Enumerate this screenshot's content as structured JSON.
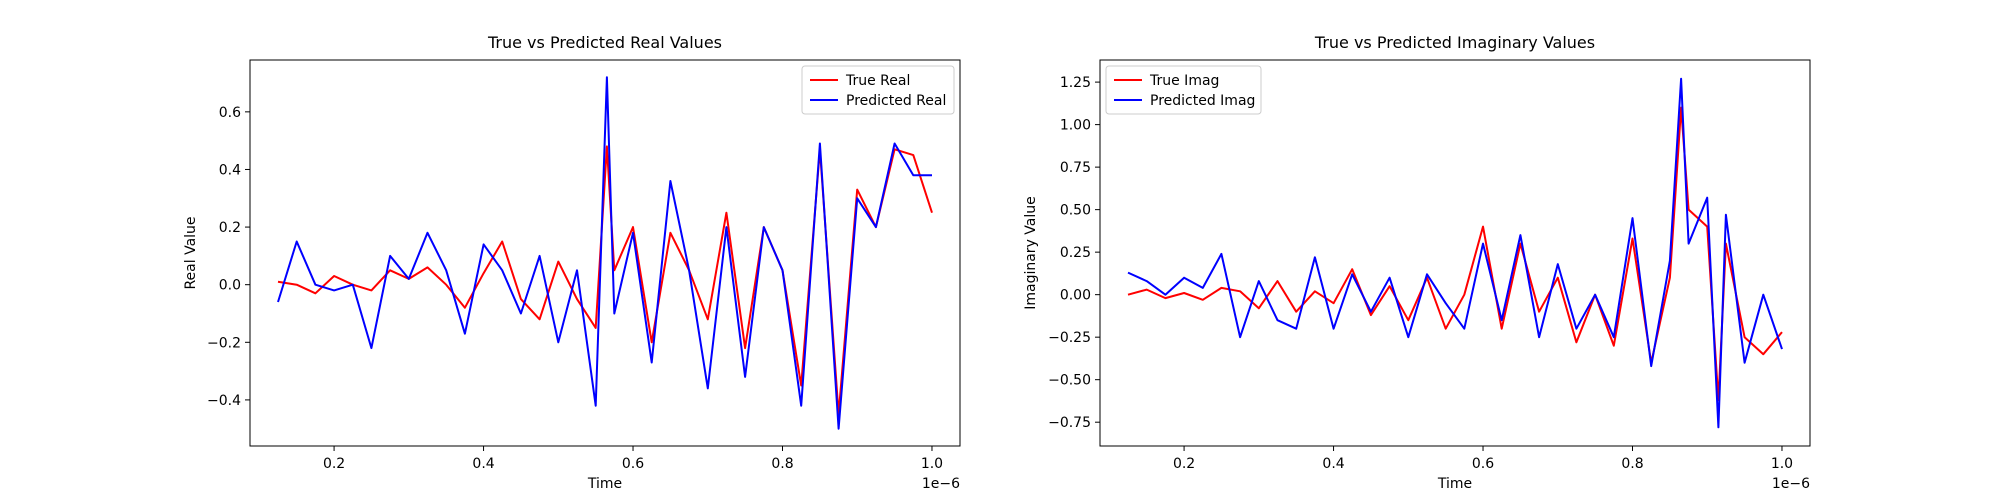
{
  "chart_data": [
    {
      "type": "line",
      "title": "True vs Predicted Real Values",
      "xlabel": "Time",
      "ylabel": "Real Value",
      "x_offset_text": "1e−6",
      "xlim": [
        0.0875,
        1.0375
      ],
      "ylim": [
        -0.56,
        0.78
      ],
      "xticks": [
        0.2,
        0.4,
        0.6,
        0.8,
        1.0
      ],
      "xtick_labels": [
        "0.2",
        "0.4",
        "0.6",
        "0.8",
        "1.0"
      ],
      "yticks": [
        -0.4,
        -0.2,
        0.0,
        0.2,
        0.4,
        0.6
      ],
      "ytick_labels": [
        "−0.4",
        "−0.2",
        "0.0",
        "0.2",
        "0.4",
        "0.6"
      ],
      "legend": "top-right",
      "grid": false,
      "x": [
        0.125,
        0.15,
        0.175,
        0.2,
        0.225,
        0.25,
        0.275,
        0.3,
        0.325,
        0.35,
        0.375,
        0.4,
        0.425,
        0.45,
        0.475,
        0.5,
        0.525,
        0.55,
        0.565,
        0.575,
        0.6,
        0.625,
        0.65,
        0.675,
        0.7,
        0.725,
        0.75,
        0.775,
        0.8,
        0.825,
        0.85,
        0.875,
        0.9,
        0.925,
        0.95,
        0.975,
        1.0
      ],
      "series": [
        {
          "name": "True Real",
          "color": "#ff0000",
          "values": [
            0.01,
            0.0,
            -0.03,
            0.03,
            0.0,
            -0.02,
            0.05,
            0.02,
            0.06,
            0.0,
            -0.08,
            0.04,
            0.15,
            -0.05,
            -0.12,
            0.08,
            -0.05,
            -0.15,
            0.48,
            0.05,
            0.2,
            -0.2,
            0.18,
            0.05,
            -0.12,
            0.25,
            -0.22,
            0.2,
            0.05,
            -0.35,
            0.47,
            -0.45,
            0.33,
            0.2,
            0.47,
            0.45,
            0.25
          ]
        },
        {
          "name": "Predicted Real",
          "color": "#0000ff",
          "values": [
            -0.06,
            0.15,
            0.0,
            -0.02,
            0.0,
            -0.22,
            0.1,
            0.02,
            0.18,
            0.05,
            -0.17,
            0.14,
            0.05,
            -0.1,
            0.1,
            -0.2,
            0.05,
            -0.42,
            0.72,
            -0.1,
            0.18,
            -0.27,
            0.36,
            0.05,
            -0.36,
            0.2,
            -0.32,
            0.2,
            0.05,
            -0.42,
            0.49,
            -0.5,
            0.3,
            0.2,
            0.49,
            0.38,
            0.38
          ]
        }
      ]
    },
    {
      "type": "line",
      "title": "True vs Predicted Imaginary Values",
      "xlabel": "Time",
      "ylabel": "Imaginary Value",
      "x_offset_text": "1e−6",
      "xlim": [
        0.0875,
        1.0375
      ],
      "ylim": [
        -0.89,
        1.38
      ],
      "xticks": [
        0.2,
        0.4,
        0.6,
        0.8,
        1.0
      ],
      "xtick_labels": [
        "0.2",
        "0.4",
        "0.6",
        "0.8",
        "1.0"
      ],
      "yticks": [
        -0.75,
        -0.5,
        -0.25,
        0.0,
        0.25,
        0.5,
        0.75,
        1.0,
        1.25
      ],
      "ytick_labels": [
        "−0.75",
        "−0.50",
        "−0.25",
        "0.00",
        "0.25",
        "0.50",
        "0.75",
        "1.00",
        "1.25"
      ],
      "legend": "top-left",
      "grid": false,
      "x": [
        0.125,
        0.15,
        0.175,
        0.2,
        0.225,
        0.25,
        0.275,
        0.3,
        0.325,
        0.35,
        0.375,
        0.4,
        0.425,
        0.45,
        0.475,
        0.5,
        0.525,
        0.55,
        0.575,
        0.6,
        0.625,
        0.65,
        0.675,
        0.7,
        0.725,
        0.75,
        0.775,
        0.8,
        0.825,
        0.85,
        0.865,
        0.875,
        0.9,
        0.915,
        0.925,
        0.95,
        0.975,
        1.0
      ],
      "series": [
        {
          "name": "True Imag",
          "color": "#ff0000",
          "values": [
            0.0,
            0.03,
            -0.02,
            0.01,
            -0.03,
            0.04,
            0.02,
            -0.08,
            0.08,
            -0.1,
            0.02,
            -0.05,
            0.15,
            -0.12,
            0.05,
            -0.15,
            0.1,
            -0.2,
            0.0,
            0.4,
            -0.2,
            0.3,
            -0.1,
            0.1,
            -0.28,
            0.0,
            -0.3,
            0.33,
            -0.4,
            0.1,
            1.1,
            0.5,
            0.4,
            -0.62,
            0.3,
            -0.25,
            -0.35,
            -0.22
          ]
        },
        {
          "name": "Predicted Imag",
          "color": "#0000ff",
          "values": [
            0.13,
            0.08,
            0.0,
            0.1,
            0.04,
            0.24,
            -0.25,
            0.08,
            -0.15,
            -0.2,
            0.22,
            -0.2,
            0.12,
            -0.1,
            0.1,
            -0.25,
            0.12,
            -0.05,
            -0.2,
            0.3,
            -0.15,
            0.35,
            -0.25,
            0.18,
            -0.2,
            0.0,
            -0.25,
            0.45,
            -0.42,
            0.2,
            1.27,
            0.3,
            0.57,
            -0.78,
            0.47,
            -0.4,
            0.0,
            -0.32
          ]
        }
      ]
    }
  ]
}
